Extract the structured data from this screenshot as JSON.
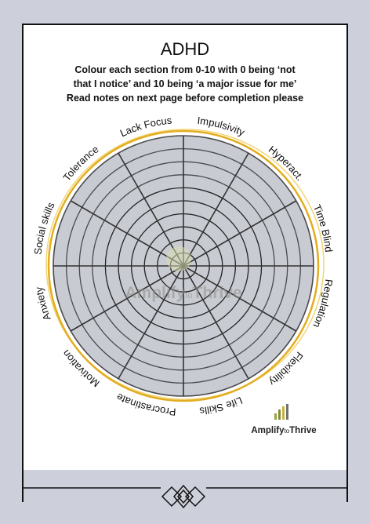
{
  "title": "ADHD",
  "instructions": [
    "Colour each section from 0-10 with 0 being ‘not",
    "that I notice’ and 10 being ‘a major issue for me’",
    "Read notes on next page before completion please"
  ],
  "wheel": {
    "labels": [
      "Impulsivity",
      "Hyperact.",
      "Time Blind",
      "Regulation",
      "Flexibility",
      "Life Skills",
      "Procrastinate",
      "Motivation",
      "Anxiety",
      "Social skills",
      "Tolerance",
      "Lack Focus"
    ]
  },
  "watermark": {
    "parts": [
      "Amplify",
      "to",
      "Thrive"
    ]
  },
  "logo": {
    "parts": [
      "Amplify",
      "to",
      "Thrive"
    ]
  }
}
